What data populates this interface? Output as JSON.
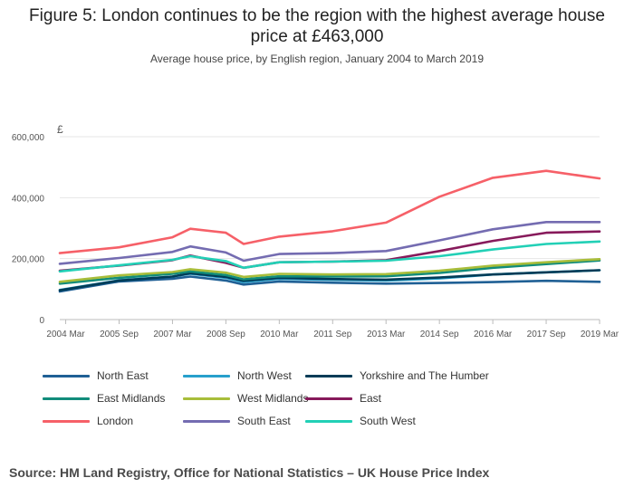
{
  "title_line1": "Figure 5: London continues to be the region with the highest average house",
  "title_line2": "price at £463,000",
  "subtitle": "Average house price, by English region, January 2004 to March 2019",
  "source": "Source: HM Land Registry, Office for National Statistics – UK House Price Index",
  "chart_data": {
    "type": "line",
    "y_unit_label": "£",
    "ylim": [
      0,
      600000
    ],
    "yticks": [
      0,
      200000,
      400000,
      600000
    ],
    "ytick_labels": [
      "0",
      "200,000",
      "400,000",
      "600,000"
    ],
    "xlim": [
      "2004-01",
      "2019-03"
    ],
    "xticks": [
      "2004-03",
      "2005-09",
      "2007-03",
      "2008-09",
      "2010-03",
      "2011-09",
      "2013-03",
      "2014-09",
      "2016-03",
      "2017-09",
      "2019-03"
    ],
    "xtick_labels": [
      "2004 Mar",
      "2005 Sep",
      "2007 Mar",
      "2008 Sep",
      "2010 Mar",
      "2011 Sep",
      "2013 Mar",
      "2014 Sep",
      "2016 Mar",
      "2017 Sep",
      "2019 Mar"
    ],
    "grid": "horizontal",
    "legend_position": "bottom",
    "series": [
      {
        "name": "North East",
        "color": "#206095",
        "x": [
          "2004-01",
          "2005-09",
          "2007-03",
          "2007-09",
          "2008-09",
          "2009-03",
          "2010-03",
          "2011-09",
          "2013-03",
          "2014-09",
          "2016-03",
          "2017-09",
          "2019-03"
        ],
        "values": [
          92000,
          125000,
          134000,
          141000,
          128000,
          115000,
          125000,
          121000,
          118000,
          120000,
          123000,
          127000,
          124000
        ]
      },
      {
        "name": "North West",
        "color": "#27A0CC",
        "x": [
          "2004-01",
          "2005-09",
          "2007-03",
          "2007-09",
          "2008-09",
          "2009-03",
          "2010-03",
          "2011-09",
          "2013-03",
          "2014-09",
          "2016-03",
          "2017-09",
          "2019-03"
        ],
        "values": [
          97000,
          129000,
          141000,
          150000,
          137000,
          123000,
          134000,
          130000,
          128000,
          135000,
          148000,
          155000,
          162000
        ]
      },
      {
        "name": "Yorkshire and The Humber",
        "color": "#003C57",
        "x": [
          "2004-01",
          "2005-09",
          "2007-03",
          "2007-09",
          "2008-09",
          "2009-03",
          "2010-03",
          "2011-09",
          "2013-03",
          "2014-09",
          "2016-03",
          "2017-09",
          "2019-03"
        ],
        "values": [
          96000,
          128000,
          141000,
          152000,
          140000,
          127000,
          137000,
          133000,
          131000,
          138000,
          148000,
          155000,
          162000
        ]
      },
      {
        "name": "East Midlands",
        "color": "#118C7B",
        "x": [
          "2004-01",
          "2005-09",
          "2007-03",
          "2007-09",
          "2008-09",
          "2009-03",
          "2010-03",
          "2011-09",
          "2013-03",
          "2014-09",
          "2016-03",
          "2017-09",
          "2019-03"
        ],
        "values": [
          118000,
          137000,
          150000,
          158000,
          146000,
          132000,
          142000,
          141000,
          142000,
          153000,
          170000,
          182000,
          194000
        ]
      },
      {
        "name": "West Midlands",
        "color": "#A8BD3A",
        "x": [
          "2004-01",
          "2005-09",
          "2007-03",
          "2007-09",
          "2008-09",
          "2009-03",
          "2010-03",
          "2011-09",
          "2013-03",
          "2014-09",
          "2016-03",
          "2017-09",
          "2019-03"
        ],
        "values": [
          124000,
          145000,
          156000,
          165000,
          154000,
          140000,
          150000,
          148000,
          149000,
          160000,
          177000,
          188000,
          198000
        ]
      },
      {
        "name": "East",
        "color": "#871A5B",
        "x": [
          "2004-01",
          "2005-09",
          "2007-03",
          "2007-09",
          "2008-09",
          "2009-03",
          "2010-03",
          "2011-09",
          "2013-03",
          "2014-09",
          "2016-03",
          "2017-09",
          "2019-03"
        ],
        "values": [
          160000,
          177000,
          195000,
          210000,
          186000,
          170000,
          188000,
          190000,
          195000,
          225000,
          258000,
          285000,
          289000
        ]
      },
      {
        "name": "London",
        "color": "#F66068",
        "x": [
          "2004-01",
          "2005-09",
          "2007-03",
          "2007-09",
          "2008-09",
          "2009-03",
          "2010-03",
          "2011-09",
          "2013-03",
          "2014-09",
          "2016-03",
          "2017-09",
          "2019-03"
        ],
        "values": [
          218000,
          237000,
          270000,
          298000,
          285000,
          248000,
          272000,
          290000,
          318000,
          403000,
          465000,
          488000,
          463000
        ]
      },
      {
        "name": "South East",
        "color": "#746CB1",
        "x": [
          "2004-01",
          "2005-09",
          "2007-03",
          "2007-09",
          "2008-09",
          "2009-03",
          "2010-03",
          "2011-09",
          "2013-03",
          "2014-09",
          "2016-03",
          "2017-09",
          "2019-03"
        ],
        "values": [
          183000,
          202000,
          222000,
          240000,
          220000,
          193000,
          215000,
          218000,
          225000,
          260000,
          296000,
          320000,
          320000
        ]
      },
      {
        "name": "South West",
        "color": "#22D0B6",
        "x": [
          "2004-01",
          "2005-09",
          "2007-03",
          "2007-09",
          "2008-09",
          "2009-03",
          "2010-03",
          "2011-09",
          "2013-03",
          "2014-09",
          "2016-03",
          "2017-09",
          "2019-03"
        ],
        "values": [
          158000,
          178000,
          196000,
          208000,
          192000,
          170000,
          188000,
          190000,
          193000,
          208000,
          230000,
          248000,
          256000
        ]
      }
    ]
  }
}
